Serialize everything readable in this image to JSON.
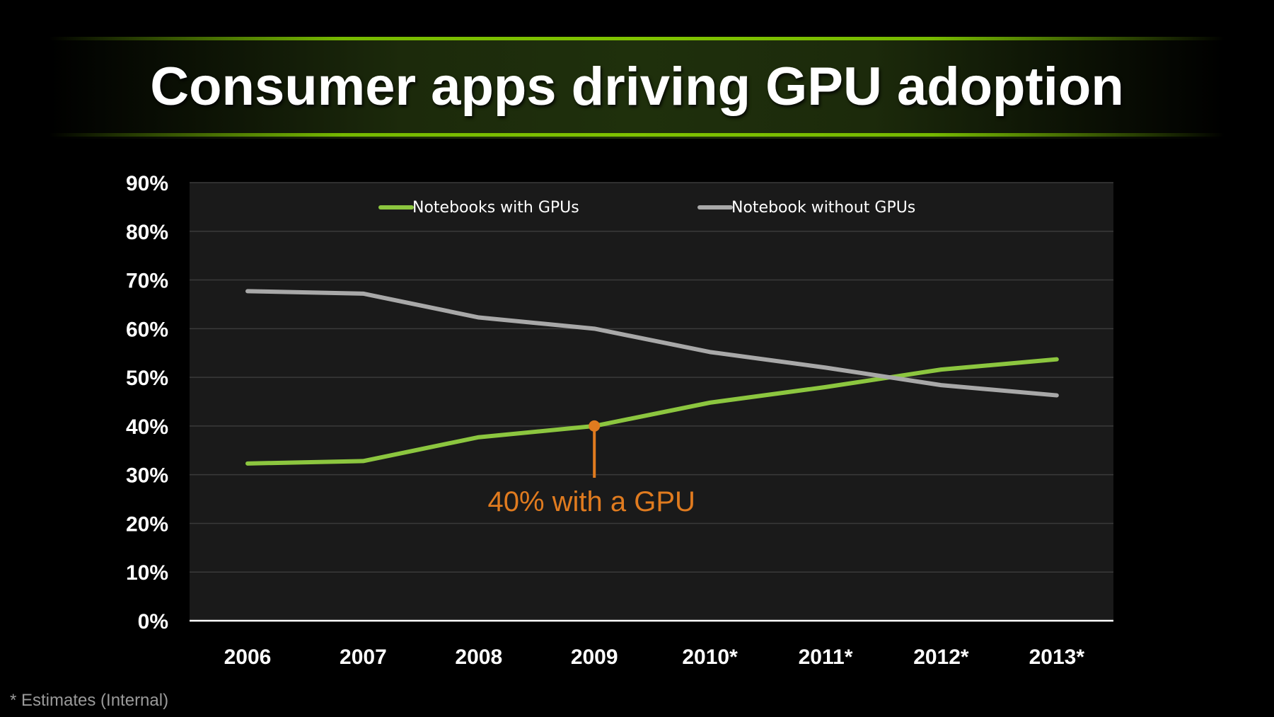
{
  "slide": {
    "title": "Consumer apps driving GPU adoption",
    "footnote": "* Estimates (Internal)"
  },
  "colors": {
    "background": "#000000",
    "plot_background": "#1a1a1a",
    "accent_green": "#8cc63f",
    "gray_series": "#a8a8a8",
    "annotation": "#e07b1f"
  },
  "chart_data": {
    "type": "line",
    "categories": [
      "2006",
      "2007",
      "2008",
      "2009",
      "2010*",
      "2011*",
      "2012*",
      "2013*"
    ],
    "series": [
      {
        "name": "Notebooks with GPUs",
        "color": "#8cc63f",
        "values": [
          32.3,
          32.8,
          37.7,
          40.0,
          44.8,
          48.0,
          51.6,
          53.7
        ]
      },
      {
        "name": "Notebook without GPUs",
        "color": "#a8a8a8",
        "values": [
          67.7,
          67.2,
          62.3,
          60.0,
          55.2,
          52.0,
          48.4,
          46.3
        ]
      }
    ],
    "ylim": [
      0,
      90
    ],
    "yticks": [
      0,
      10,
      20,
      30,
      40,
      50,
      60,
      70,
      80,
      90
    ],
    "ytick_labels": [
      "0%",
      "10%",
      "20%",
      "30%",
      "40%",
      "50%",
      "60%",
      "70%",
      "80%",
      "90%"
    ],
    "grid": true,
    "legend": "top",
    "annotation": {
      "text": "40% with a GPU",
      "category": "2009",
      "value": 40.0
    }
  }
}
